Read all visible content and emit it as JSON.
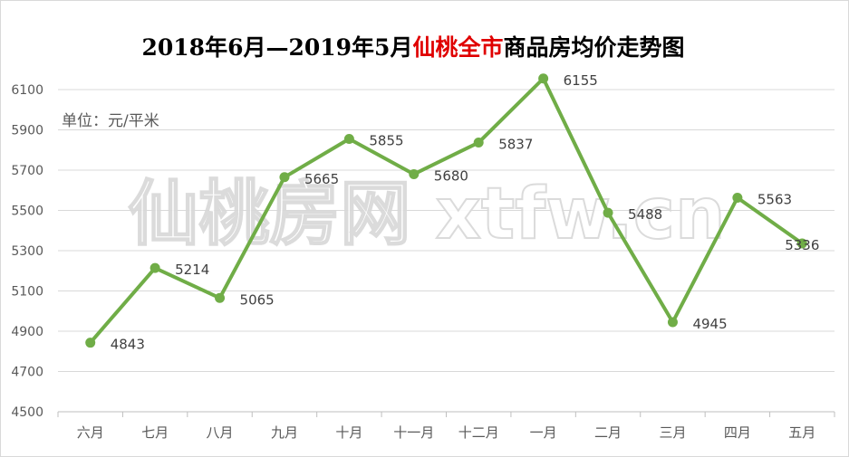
{
  "chart_data": {
    "type": "line",
    "title_parts": [
      {
        "text": "2018年6月—2019年5月",
        "color": "#000000"
      },
      {
        "text": "仙桃全市",
        "color": "#e00000"
      },
      {
        "text": "商品房均价走势图",
        "color": "#000000"
      }
    ],
    "unit_label": "单位：元/平米",
    "watermark": "仙桃房网 xtfw.cn",
    "categories": [
      "六月",
      "七月",
      "八月",
      "九月",
      "十月",
      "十一月",
      "十二月",
      "一月",
      "二月",
      "三月",
      "四月",
      "五月"
    ],
    "series": [
      {
        "values": [
          4843,
          5214,
          5065,
          5665,
          5855,
          5680,
          5837,
          6155,
          5488,
          4945,
          5563,
          5336
        ],
        "color": "#70ad47"
      }
    ],
    "ylim": [
      4500,
      6100
    ],
    "yticks": [
      4500,
      4700,
      4900,
      5100,
      5300,
      5500,
      5700,
      5900,
      6100
    ],
    "grid": true,
    "legend": "none",
    "xlabel": "",
    "ylabel": ""
  }
}
